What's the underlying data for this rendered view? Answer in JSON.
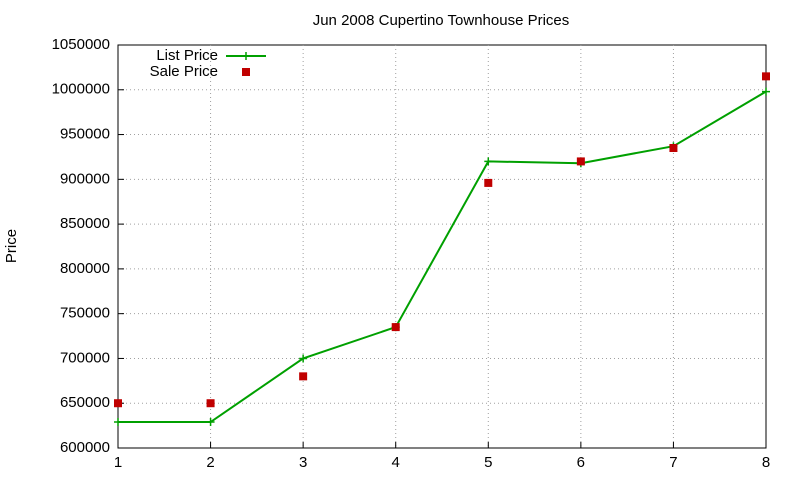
{
  "chart_data": {
    "type": "line",
    "title": "Jun 2008 Cupertino Townhouse Prices",
    "y_label": "Price",
    "x": [
      1,
      2,
      3,
      4,
      5,
      6,
      7,
      8
    ],
    "series": [
      {
        "name": "List Price",
        "color": "#00a000",
        "style": "linespoints",
        "values": [
          629000,
          629000,
          700000,
          735000,
          920000,
          918000,
          937000,
          998000
        ]
      },
      {
        "name": "Sale Price",
        "color": "#c00000",
        "style": "points",
        "values": [
          650000,
          650000,
          680000,
          735000,
          896000,
          920000,
          935000,
          1015000
        ]
      }
    ],
    "xlim": [
      1,
      8
    ],
    "xticks": [
      1,
      2,
      3,
      4,
      5,
      6,
      7,
      8
    ],
    "ylim": [
      600000,
      1050000
    ],
    "yticks": [
      600000,
      650000,
      700000,
      750000,
      800000,
      850000,
      900000,
      950000,
      1000000,
      1050000
    ],
    "grid": true,
    "legend": "top-left"
  }
}
